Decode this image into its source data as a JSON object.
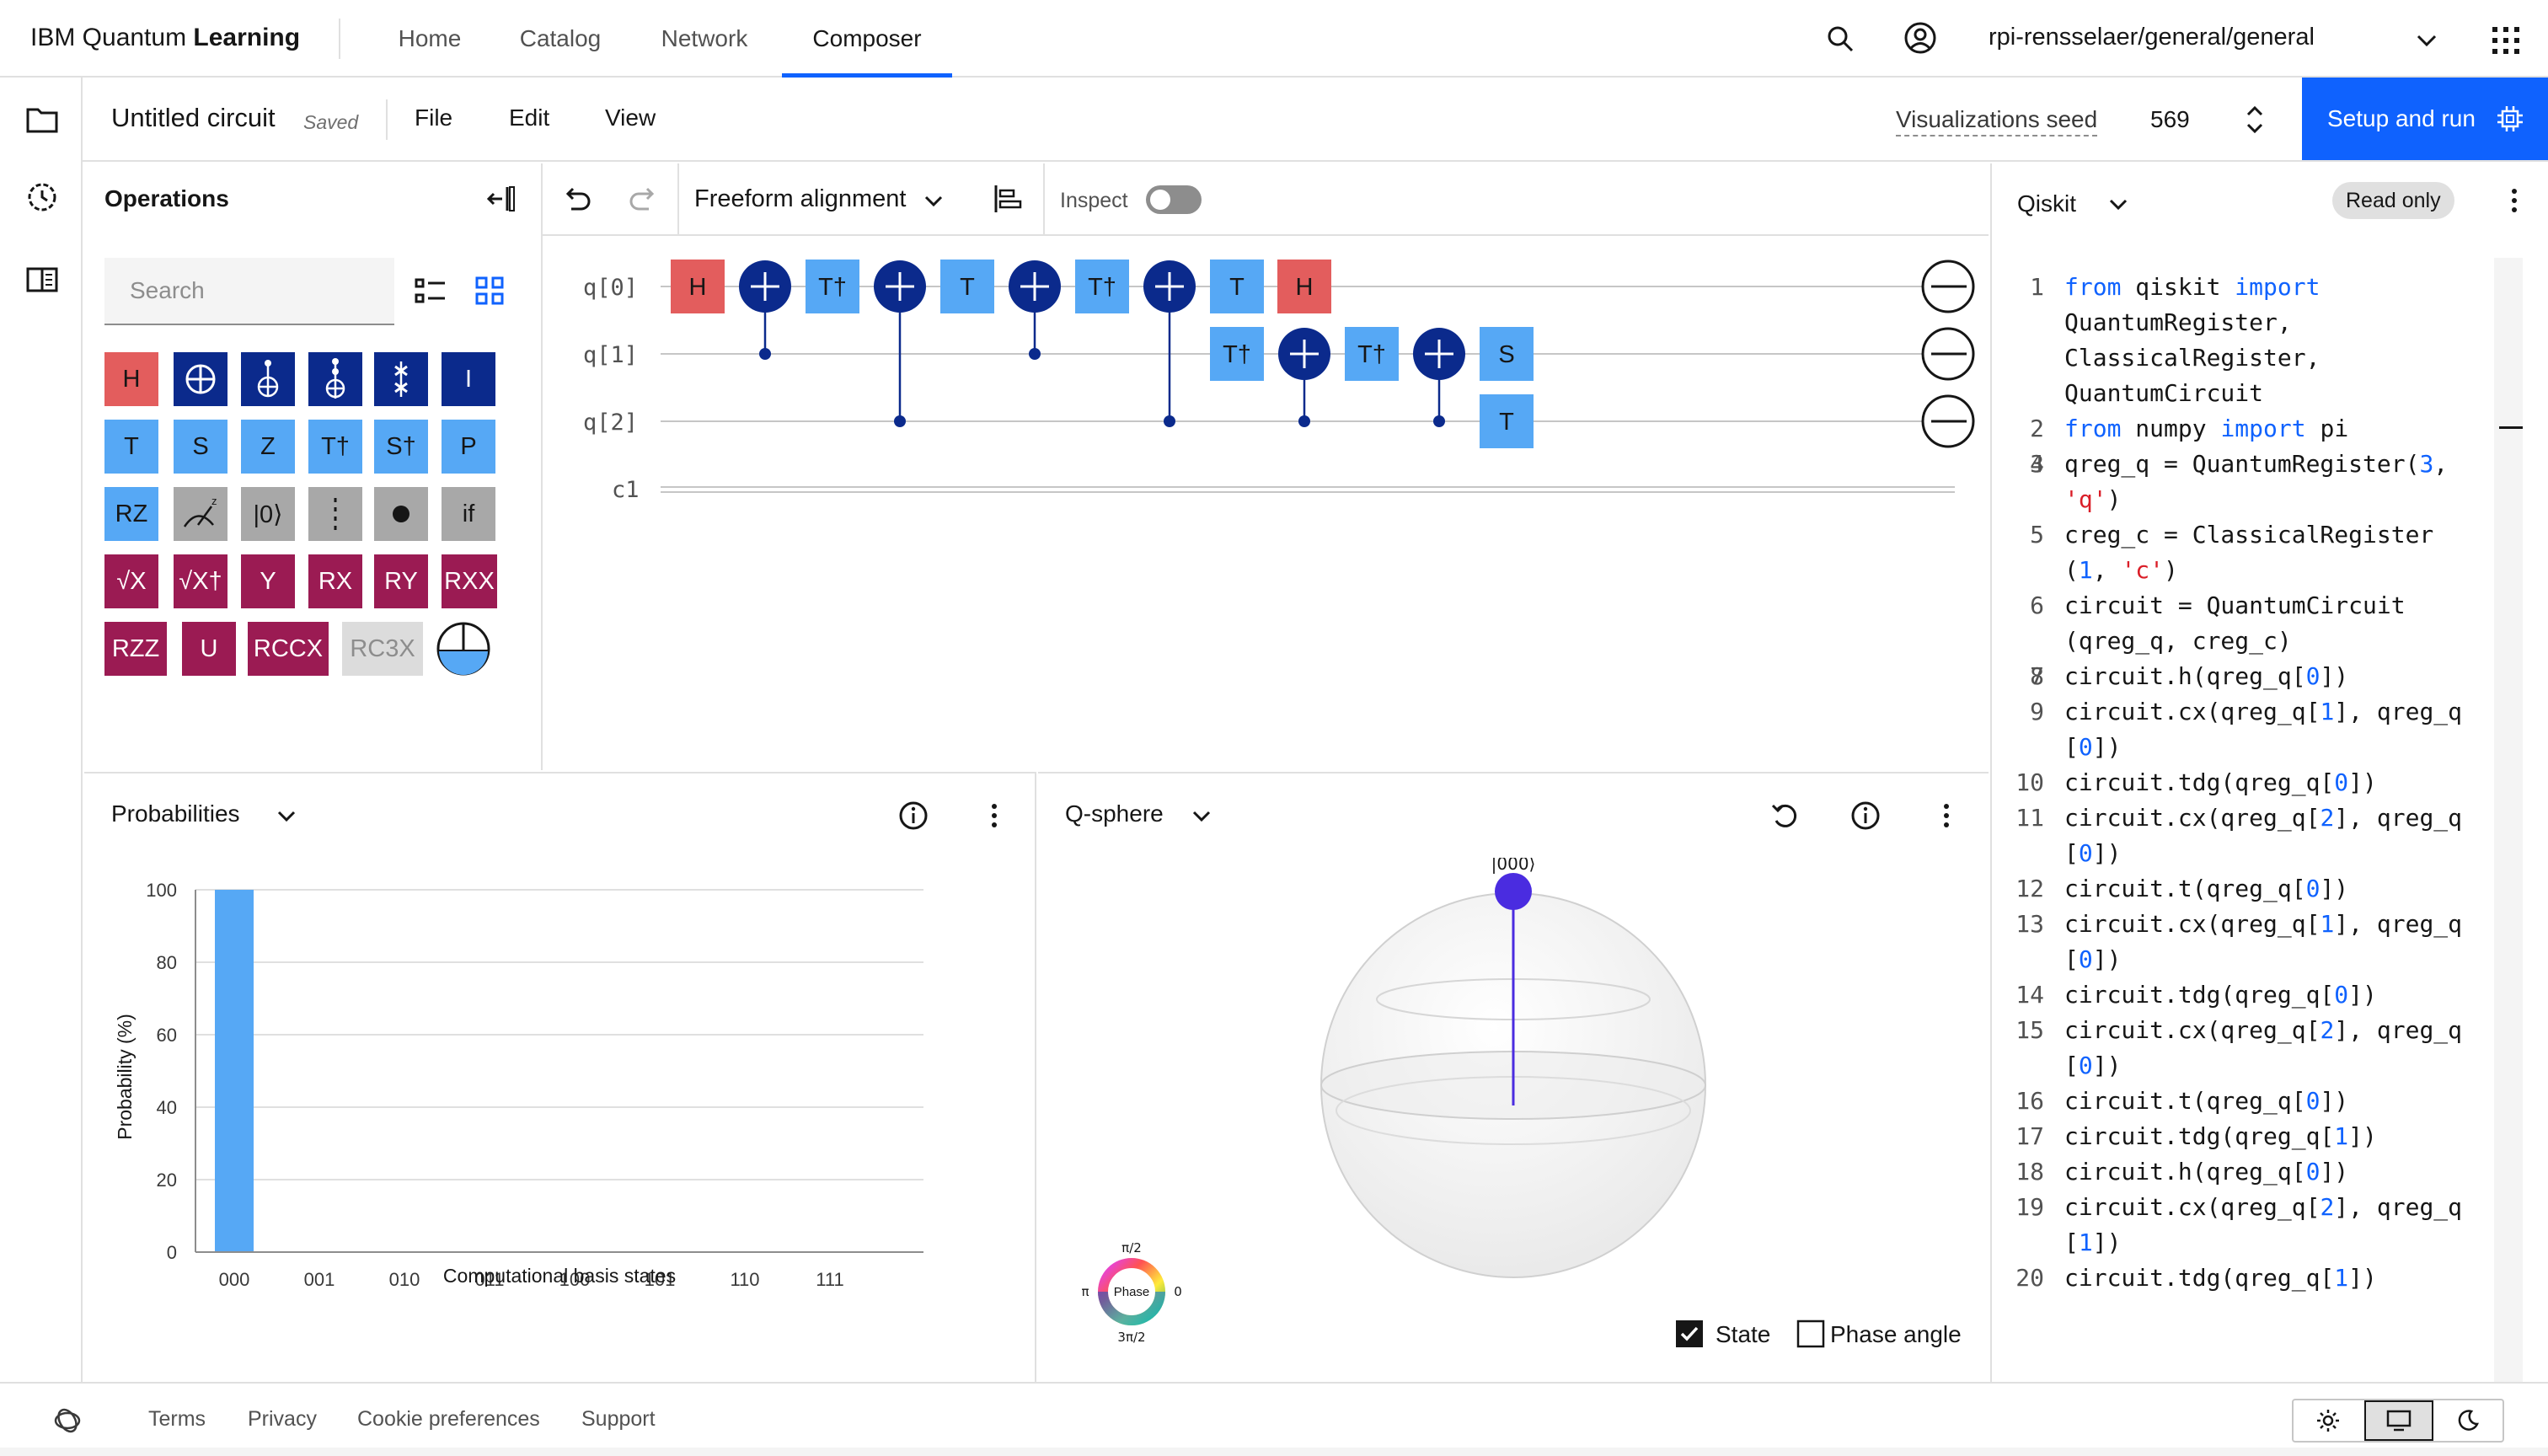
{
  "header": {
    "brand_plain": "IBM Quantum ",
    "brand_bold": "Learning",
    "nav": [
      "Home",
      "Catalog",
      "Network",
      "Composer"
    ],
    "active_nav": "Composer",
    "project": "rpi-rensselaer/general/general"
  },
  "circuit_bar": {
    "title": "Untitled circuit",
    "status": "Saved",
    "menus": [
      "File",
      "Edit",
      "View"
    ],
    "seed_label": "Visualizations seed",
    "seed_value": "569",
    "run_label": "Setup and run"
  },
  "operations": {
    "title": "Operations",
    "search_placeholder": "Search",
    "gates_row1": [
      "H",
      "I"
    ],
    "gates_row2": [
      "T",
      "S",
      "Z",
      "T†",
      "S†",
      "P"
    ],
    "gates_row3": [
      "RZ",
      "|0⟩",
      "if"
    ],
    "gates_row4": [
      "√X",
      "√X†",
      "Y",
      "RX",
      "RY",
      "RXX"
    ],
    "gates_row5": [
      "RZZ",
      "U",
      "RCCX",
      "RC3X"
    ]
  },
  "composer": {
    "alignment": "Freeform alignment",
    "inspect_label": "Inspect",
    "qubits": [
      "q[0]",
      "q[1]",
      "q[2]"
    ],
    "classical": "c1",
    "gate_labels": {
      "h": "H",
      "tdg": "T†",
      "t": "T",
      "s": "S"
    }
  },
  "probabilities": {
    "title": "Probabilities",
    "chart_data": {
      "type": "bar",
      "categories": [
        "000",
        "001",
        "010",
        "011",
        "100",
        "101",
        "110",
        "111"
      ],
      "values": [
        100,
        0,
        0,
        0,
        0,
        0,
        0,
        0
      ],
      "ylabel": "Probability (%)",
      "xlabel": "Computational basis states",
      "ylim": [
        0,
        100
      ],
      "yticks": [
        0,
        20,
        40,
        60,
        80,
        100
      ],
      "grid": true,
      "bar_color": "#56a8f5"
    }
  },
  "qsphere": {
    "title": "Q-sphere",
    "state_label": "|000⟩",
    "phase_label": "Phase",
    "phase_top": "π/2",
    "phase_left": "π",
    "phase_right": "0",
    "phase_bottom": "3π/2",
    "check_state": "State",
    "check_phase": "Phase angle",
    "state_checked": true,
    "phase_checked": false
  },
  "qiskit": {
    "title": "Qiskit",
    "badge": "Read only",
    "lines": [
      {
        "n": "1",
        "t": "from qiskit import"
      },
      {
        "n": "",
        "t": "QuantumRegister,"
      },
      {
        "n": "",
        "t": "ClassicalRegister,"
      },
      {
        "n": "",
        "t": "QuantumCircuit"
      },
      {
        "n": "2",
        "t": "from numpy import pi"
      },
      {
        "n": "3",
        "t": ""
      },
      {
        "n": "4",
        "t": "qreg_q = QuantumRegister(3,"
      },
      {
        "n": "",
        "t": "'q')"
      },
      {
        "n": "5",
        "t": "creg_c = ClassicalRegister"
      },
      {
        "n": "",
        "t": "(1, 'c')"
      },
      {
        "n": "6",
        "t": "circuit = QuantumCircuit"
      },
      {
        "n": "",
        "t": "(qreg_q, creg_c)"
      },
      {
        "n": "7",
        "t": ""
      },
      {
        "n": "8",
        "t": "circuit.h(qreg_q[0])"
      },
      {
        "n": "9",
        "t": "circuit.cx(qreg_q[1], qreg_q"
      },
      {
        "n": "",
        "t": "[0])"
      },
      {
        "n": "10",
        "t": "circuit.tdg(qreg_q[0])"
      },
      {
        "n": "11",
        "t": "circuit.cx(qreg_q[2], qreg_q"
      },
      {
        "n": "",
        "t": "[0])"
      },
      {
        "n": "12",
        "t": "circuit.t(qreg_q[0])"
      },
      {
        "n": "13",
        "t": "circuit.cx(qreg_q[1], qreg_q"
      },
      {
        "n": "",
        "t": "[0])"
      },
      {
        "n": "14",
        "t": "circuit.tdg(qreg_q[0])"
      },
      {
        "n": "15",
        "t": "circuit.cx(qreg_q[2], qreg_q"
      },
      {
        "n": "",
        "t": "[0])"
      },
      {
        "n": "16",
        "t": "circuit.t(qreg_q[0])"
      },
      {
        "n": "17",
        "t": "circuit.tdg(qreg_q[1])"
      },
      {
        "n": "18",
        "t": "circuit.h(qreg_q[0])"
      },
      {
        "n": "19",
        "t": "circuit.cx(qreg_q[2], qreg_q"
      },
      {
        "n": "",
        "t": "[1])"
      },
      {
        "n": "20",
        "t": "circuit.tdg(qreg_q[1])"
      }
    ]
  },
  "footer": {
    "links": [
      "Terms",
      "Privacy",
      "Cookie preferences",
      "Support"
    ]
  },
  "colors": {
    "accent": "#0f62fe",
    "gate_h": "#e35d5d",
    "gate_navy": "#0b2a8c",
    "gate_phase": "#56a8f5",
    "gate_rot": "#9b1b53"
  }
}
